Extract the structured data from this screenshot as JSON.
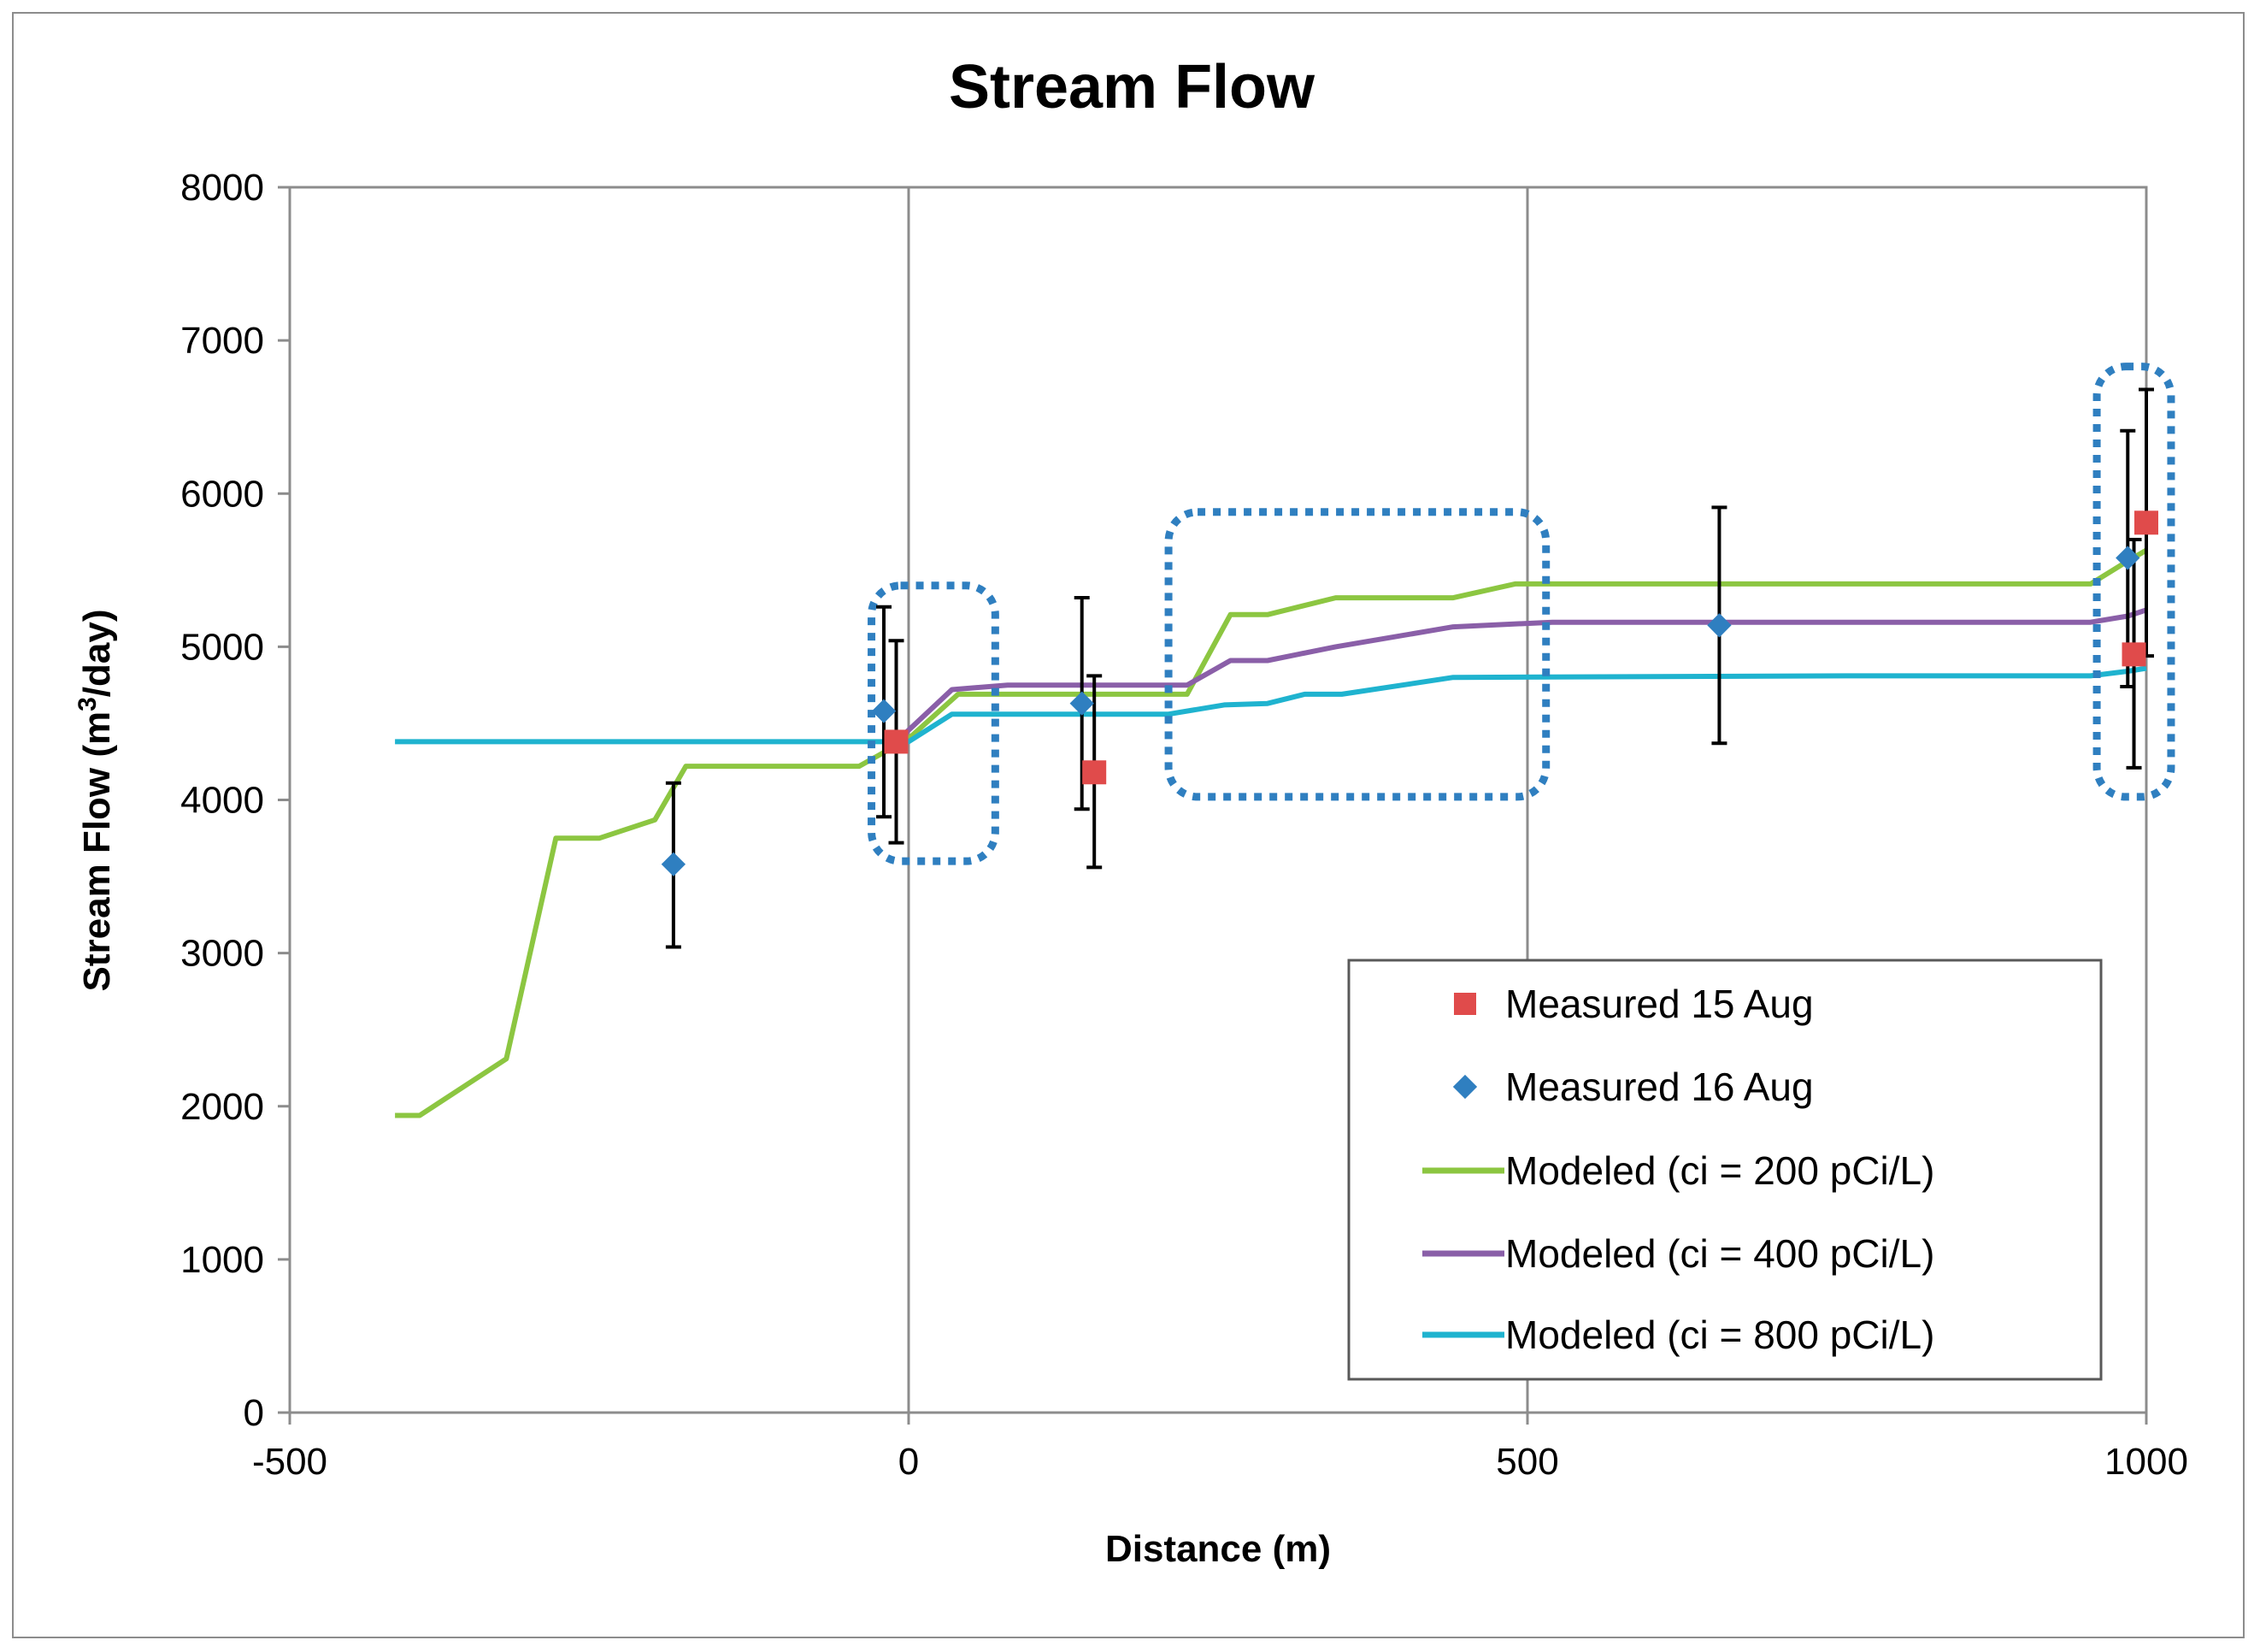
{
  "chart_data": {
    "type": "line",
    "title": "Stream Flow",
    "xlabel": "Distance (m)",
    "ylabel_main": "Stream Flow (m",
    "ylabel_sup": "3",
    "ylabel_end": "/day)",
    "xlim": [
      -500,
      1000
    ],
    "ylim": [
      0,
      8000
    ],
    "x_ticks": [
      -500,
      0,
      500,
      1000
    ],
    "y_ticks": [
      0,
      1000,
      2000,
      3000,
      4000,
      5000,
      6000,
      7000,
      8000
    ],
    "x_tick_labels": [
      "-500",
      "0",
      "500",
      "1000"
    ],
    "y_tick_labels": [
      "0",
      "1000",
      "2000",
      "3000",
      "4000",
      "5000",
      "6000",
      "7000",
      "8000"
    ],
    "vertical_gridlines_at": [
      0,
      500
    ],
    "legend_position": "lower-right",
    "series": [
      {
        "name": "Measured 15 Aug",
        "kind": "marker",
        "marker": "square",
        "color": "#e04b4b",
        "points": [
          {
            "x": -10,
            "y": 4380,
            "err_low": 3720,
            "err_high": 5040
          },
          {
            "x": 150,
            "y": 4180,
            "err_low": 3560,
            "err_high": 4810
          },
          {
            "x": 990,
            "y": 4950,
            "err_low": 4210,
            "err_high": 5700
          },
          {
            "x": 1000,
            "y": 5810,
            "err_low": 4940,
            "err_high": 6680
          }
        ]
      },
      {
        "name": "Measured 16 Aug",
        "kind": "marker",
        "marker": "diamond",
        "color": "#2f7fc0",
        "points": [
          {
            "x": -190,
            "y": 3580,
            "err_low": 3040,
            "err_high": 4110
          },
          {
            "x": -20,
            "y": 4580,
            "err_low": 3890,
            "err_high": 5260
          },
          {
            "x": 140,
            "y": 4630,
            "err_low": 3940,
            "err_high": 5320
          },
          {
            "x": 655,
            "y": 5140,
            "err_low": 4370,
            "err_high": 5910
          },
          {
            "x": 985,
            "y": 5580,
            "err_low": 4740,
            "err_high": 6410
          }
        ]
      },
      {
        "name": "Modeled (ci = 200 pCi/L)",
        "kind": "line",
        "color": "#8cc641",
        "points": [
          [
            -415,
            1940
          ],
          [
            -395,
            1940
          ],
          [
            -325,
            2310
          ],
          [
            -285,
            3750
          ],
          [
            -250,
            3750
          ],
          [
            -205,
            3870
          ],
          [
            -180,
            4220
          ],
          [
            -40,
            4220
          ],
          [
            0,
            4400
          ],
          [
            40,
            4690
          ],
          [
            225,
            4690
          ],
          [
            260,
            5210
          ],
          [
            290,
            5210
          ],
          [
            345,
            5320
          ],
          [
            440,
            5320
          ],
          [
            490,
            5410
          ],
          [
            955,
            5410
          ],
          [
            985,
            5560
          ],
          [
            1000,
            5630
          ]
        ]
      },
      {
        "name": "Modeled (ci = 400 pCi/L)",
        "kind": "line",
        "color": "#8a5fa8",
        "points": [
          [
            -10,
            4380
          ],
          [
            35,
            4720
          ],
          [
            80,
            4750
          ],
          [
            225,
            4750
          ],
          [
            260,
            4910
          ],
          [
            290,
            4910
          ],
          [
            345,
            5000
          ],
          [
            440,
            5130
          ],
          [
            520,
            5160
          ],
          [
            955,
            5160
          ],
          [
            985,
            5200
          ],
          [
            1000,
            5240
          ]
        ]
      },
      {
        "name": "Modeled (ci = 800 pCi/L)",
        "kind": "line",
        "color": "#1fb3cf",
        "points": [
          [
            -415,
            4380
          ],
          [
            0,
            4380
          ],
          [
            35,
            4560
          ],
          [
            210,
            4560
          ],
          [
            255,
            4620
          ],
          [
            290,
            4630
          ],
          [
            320,
            4690
          ],
          [
            350,
            4690
          ],
          [
            440,
            4800
          ],
          [
            760,
            4810
          ],
          [
            955,
            4810
          ],
          [
            985,
            4840
          ],
          [
            1000,
            4860
          ]
        ]
      }
    ],
    "highlight_boxes": [
      {
        "x_min": -30,
        "x_max": 70,
        "y_min": 3600,
        "y_max": 5400
      },
      {
        "x_min": 210,
        "x_max": 515,
        "y_min": 4020,
        "y_max": 5880
      },
      {
        "x_min": 960,
        "x_max": 1020,
        "y_min": 4020,
        "y_max": 6830
      }
    ]
  }
}
